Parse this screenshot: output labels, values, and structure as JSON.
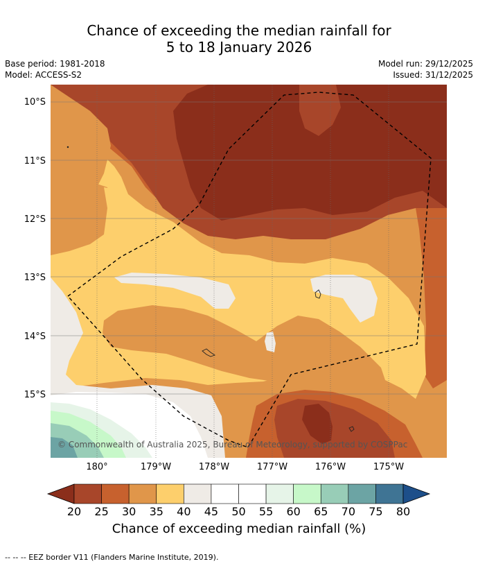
{
  "title": {
    "line1": "Chance of exceeding the median rainfall for",
    "line2": "5 to 18 January 2026"
  },
  "meta": {
    "base_period": "Base period: 1981-2018",
    "model": "Model: ACCESS-S2",
    "model_run": "Model run: 29/12/2025",
    "issued": "Issued: 31/12/2025"
  },
  "map": {
    "y_ticks": [
      "10°S",
      "11°S",
      "12°S",
      "13°S",
      "14°S",
      "15°S"
    ],
    "x_ticks": [
      "180°",
      "179°W",
      "178°W",
      "177°W",
      "176°W",
      "175°W"
    ],
    "attribution": "© Commonwealth of Australia 2025, Bureau of Meteorology, supported by COSPPac",
    "region_colors": {
      "below_20": "#8b2e1b",
      "20_25": "#a8462a",
      "25_30": "#c7612e",
      "30_35": "#e0964a",
      "35_40": "#fdcf6c",
      "40_45": "#efebe6",
      "45_55": "#ffffff",
      "55_60": "#e6f4e8",
      "60_65": "#c7f8c9",
      "65_70": "#98cdb7",
      "70_75": "#6ca4a4",
      "75_80": "#3f7494",
      "above_80": "#1d4f8a"
    }
  },
  "colorbar": {
    "ticks": [
      "20",
      "25",
      "30",
      "35",
      "40",
      "45",
      "50",
      "55",
      "60",
      "65",
      "70",
      "75",
      "80"
    ],
    "colors": [
      "#a8462a",
      "#c7612e",
      "#e0964a",
      "#fdcf6c",
      "#efebe6",
      "#ffffff",
      "#ffffff",
      "#e6f4e8",
      "#c7f8c9",
      "#98cdb7",
      "#6ca4a4",
      "#3f7494"
    ],
    "under_color": "#8b2e1b",
    "over_color": "#1d4f8a",
    "label": "Chance of exceeding median rainfall (%)"
  },
  "footnote": "--  --  -- EEZ border V11 (Flanders Marine Institute, 2019)."
}
